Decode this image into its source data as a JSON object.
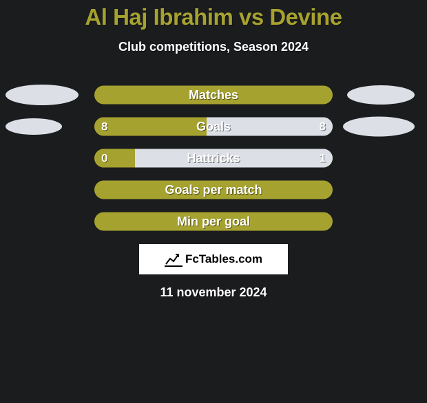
{
  "title": "Al Haj Ibrahim vs Devine",
  "subtitle": "Club competitions, Season 2024",
  "date": "11 november 2024",
  "logo_text": "FcTables.com",
  "colors": {
    "bg": "#1b1c1e",
    "accent": "#a6a22f",
    "light": "#dcdfe6",
    "text": "#ffffff"
  },
  "rows": [
    {
      "label": "Matches",
      "show_left_ellipse": true,
      "show_right_ellipse": true,
      "left_ellipse_w": 106,
      "left_ellipse_h": 30,
      "right_ellipse_w": 98,
      "right_ellipse_h": 28,
      "left_val": null,
      "right_val": null,
      "left_pct": 100,
      "right_pct": 0
    },
    {
      "label": "Goals",
      "show_left_ellipse": true,
      "show_right_ellipse": true,
      "left_ellipse_w": 82,
      "left_ellipse_h": 24,
      "right_ellipse_w": 104,
      "right_ellipse_h": 29,
      "left_val": "8",
      "right_val": "8",
      "left_pct": 47,
      "right_pct": 53
    },
    {
      "label": "Hattricks",
      "show_left_ellipse": false,
      "show_right_ellipse": false,
      "left_val": "0",
      "right_val": "1",
      "left_pct": 17,
      "right_pct": 83
    },
    {
      "label": "Goals per match",
      "show_left_ellipse": false,
      "show_right_ellipse": false,
      "left_val": null,
      "right_val": null,
      "left_pct": 100,
      "right_pct": 0
    },
    {
      "label": "Min per goal",
      "show_left_ellipse": false,
      "show_right_ellipse": false,
      "left_val": null,
      "right_val": null,
      "left_pct": 100,
      "right_pct": 0
    }
  ]
}
